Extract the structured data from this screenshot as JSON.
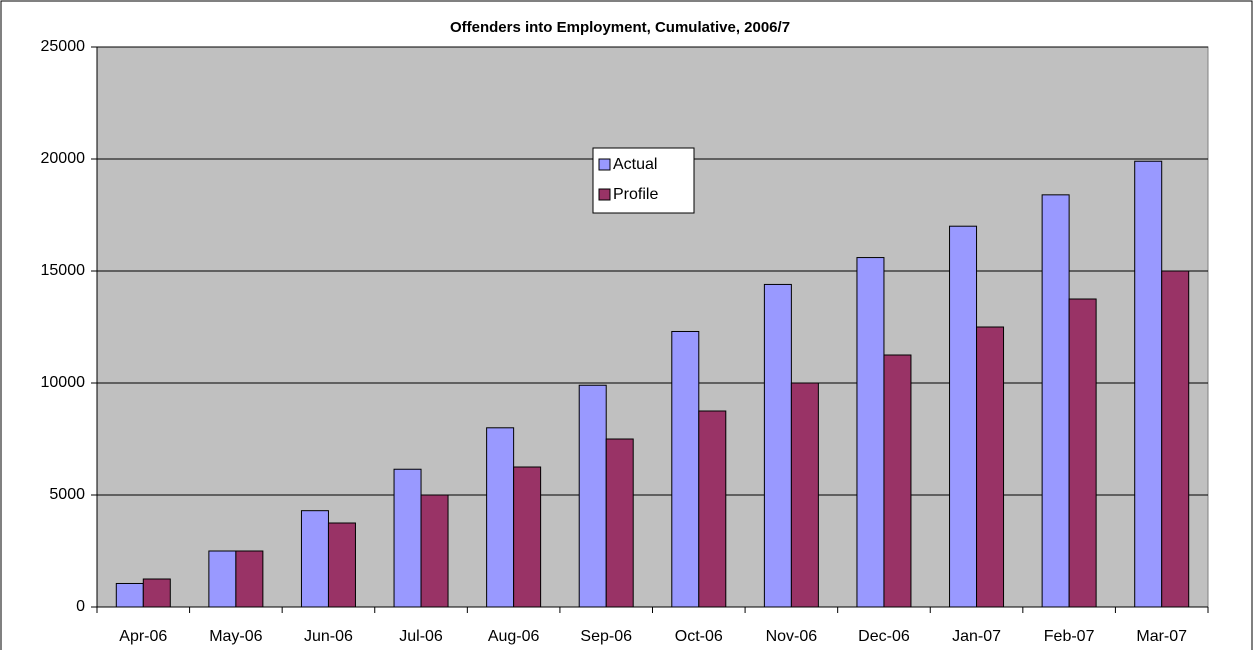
{
  "chart_data": {
    "type": "bar",
    "title": "Offenders into Employment, Cumulative, 2006/7",
    "categories": [
      "Apr-06",
      "May-06",
      "Jun-06",
      "Jul-06",
      "Aug-06",
      "Sep-06",
      "Oct-06",
      "Nov-06",
      "Dec-06",
      "Jan-07",
      "Feb-07",
      "Mar-07"
    ],
    "series": [
      {
        "name": "Actual",
        "color": "#9999ff",
        "values": [
          1050,
          2500,
          4300,
          6150,
          8000,
          9900,
          12300,
          14400,
          15600,
          17000,
          18400,
          19900
        ]
      },
      {
        "name": "Profile",
        "color": "#993366",
        "values": [
          1250,
          2500,
          3750,
          5000,
          6250,
          7500,
          8750,
          10000,
          11250,
          12500,
          13750,
          15000
        ]
      }
    ],
    "ylim": [
      0,
      25000
    ],
    "yticks": [
      0,
      5000,
      10000,
      15000,
      20000,
      25000
    ],
    "grid": true,
    "legend": "top"
  }
}
